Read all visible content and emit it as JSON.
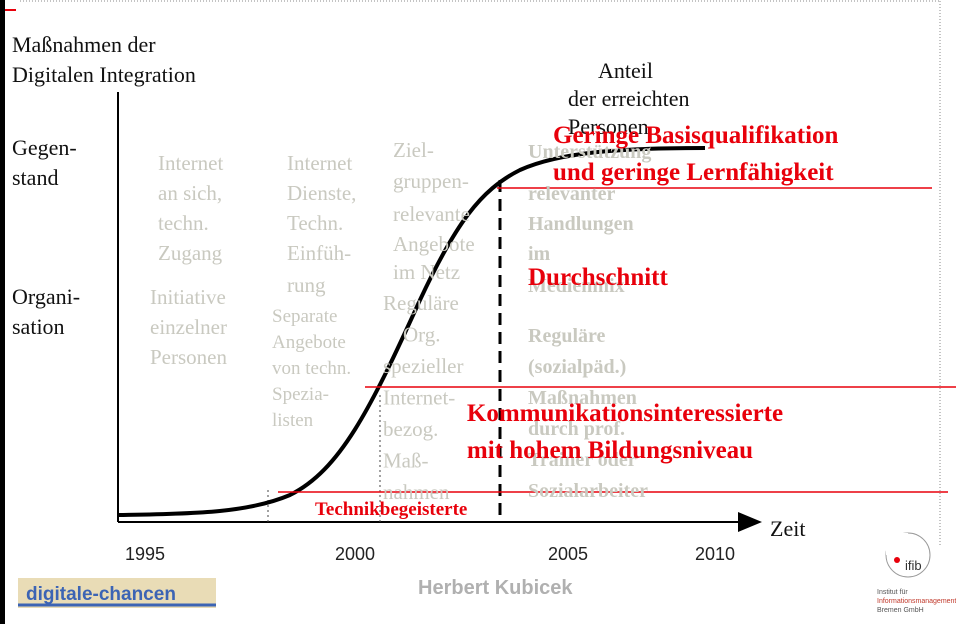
{
  "title": [
    "Maßnahmen der",
    "Digitalen Integration"
  ],
  "reach_label": [
    "Anteil",
    "der erreichten",
    "Personen"
  ],
  "row_labels": [
    [
      "Gegen-",
      "stand"
    ],
    [
      "Organi-",
      "sation"
    ]
  ],
  "columns": [
    {
      "subject": [
        "Internet",
        "an sich,",
        "techn.",
        " Zugang"
      ],
      "organisation": [
        "Initiative",
        "einzelner",
        "Personen"
      ]
    },
    {
      "subject": [
        "Internet",
        "Dienste,",
        "Techn.",
        "Einfüh-",
        "rung"
      ],
      "organisation": [
        "Separate",
        "Angebote",
        "von techn.",
        "Spezia-",
        "listen"
      ]
    },
    {
      "subject": [
        "Ziel-",
        "gruppen-",
        "relevante",
        "Angebote",
        "im Netz"
      ],
      "organisation": [
        "Reguläre",
        "Org.",
        "spezieller",
        "Internet-",
        "bezog.",
        "Maß-",
        "nahmen"
      ]
    },
    {
      "subject": [
        "Unterstützung",
        "relevanter",
        "Handlungen",
        "im",
        "Medienmix"
      ],
      "organisation": [
        "Reguläre",
        "(sozialpäd.)",
        "Maßnahmen",
        "durch prof.",
        "Trainer oder",
        "Sozialarbeiter"
      ]
    }
  ],
  "target_groups": [
    [
      "Geringe Basisqualifikation",
      "und geringe Lernfähigkeit"
    ],
    [
      "Durchschnitt"
    ],
    [
      "Kommunikationsinteressierte",
      "mit hohem Bildungsniveau"
    ],
    [
      "Technikbegeisterte"
    ]
  ],
  "x_axis": {
    "label": "Zeit",
    "years": [
      "1995",
      "2000",
      "2005",
      "2010"
    ]
  },
  "footer": {
    "logo_left": "digitale-chancen",
    "author": "Herbert Kubicek",
    "logo_right": "ifib",
    "institute": [
      "Institut für",
      "Informationsmanagement",
      "Bremen GmbH"
    ]
  }
}
